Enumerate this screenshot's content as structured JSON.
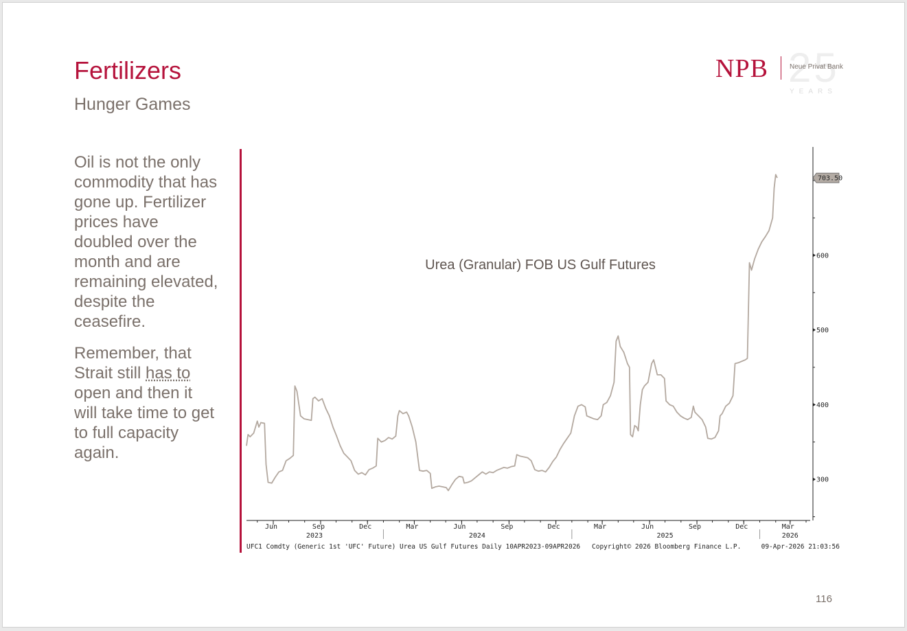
{
  "slide": {
    "title": "Fertilizers",
    "subtitle": "Hunger Games",
    "page_number": "116",
    "logo": {
      "brand": "NPB",
      "bank_name": "Neue Privat Bank",
      "anniversary": "25",
      "years_label": "YEARS"
    },
    "body": {
      "paragraph1": "Oil is not the only commodity that has gone up. Fertilizer prices have doubled over the month and are remaining elevated, despite the ceasefire.",
      "paragraph2_pre": "Remember, that Strait still ",
      "paragraph2_underlined": "has to",
      "paragraph2_post": " open and then it will take time to get to full capacity again."
    },
    "colors": {
      "accent": "#b5123b",
      "text": "#7a706a",
      "series": "#b3a89f"
    }
  },
  "chart_data": {
    "type": "line",
    "title": "Urea (Granular) FOB US Gulf Futures",
    "last_value_label": "703.50",
    "last_value": 703.5,
    "y_ticks": [
      300,
      400,
      500,
      600
    ],
    "ylim": [
      245,
      745
    ],
    "xlim": [
      "2023-04-10",
      "2026-04-09"
    ],
    "x_tick_labels": [
      {
        "date": "2023-06-01",
        "label": "Jun"
      },
      {
        "date": "2023-09-01",
        "label": "Sep"
      },
      {
        "date": "2023-12-01",
        "label": "Dec"
      },
      {
        "date": "2024-03-01",
        "label": "Mar"
      },
      {
        "date": "2024-06-01",
        "label": "Jun"
      },
      {
        "date": "2024-09-01",
        "label": "Sep"
      },
      {
        "date": "2024-12-01",
        "label": "Dec"
      },
      {
        "date": "2025-03-01",
        "label": "Mar"
      },
      {
        "date": "2025-06-01",
        "label": "Jun"
      },
      {
        "date": "2025-09-01",
        "label": "Sep"
      },
      {
        "date": "2025-12-01",
        "label": "Dec"
      },
      {
        "date": "2026-03-01",
        "label": "Mar"
      }
    ],
    "year_labels": [
      {
        "date": "2023-08-20",
        "label": "2023"
      },
      {
        "date": "2024-07-01",
        "label": "2024"
      },
      {
        "date": "2025-07-01",
        "label": "2025"
      },
      {
        "date": "2026-03-01",
        "label": "2026"
      }
    ],
    "year_dividers": [
      "2024-01-01",
      "2025-01-01",
      "2026-01-01"
    ],
    "footer_left": "UFC1 Comdty (Generic 1st 'UFC' Future) Urea US Gulf Futures Daily 10APR2023-09APR2026",
    "footer_center": "Copyright© 2026 Bloomberg Finance L.P.",
    "footer_right": "09-Apr-2026 21:03:56",
    "series": [
      {
        "points": [
          [
            "2023-04-10",
            345
          ],
          [
            "2023-04-13",
            360
          ],
          [
            "2023-04-17",
            357
          ],
          [
            "2023-04-24",
            362
          ],
          [
            "2023-05-01",
            378
          ],
          [
            "2023-05-04",
            370
          ],
          [
            "2023-05-08",
            376
          ],
          [
            "2023-05-15",
            375
          ],
          [
            "2023-05-18",
            320
          ],
          [
            "2023-05-22",
            296
          ],
          [
            "2023-05-29",
            295
          ],
          [
            "2023-06-05",
            303
          ],
          [
            "2023-06-12",
            310
          ],
          [
            "2023-06-19",
            312
          ],
          [
            "2023-06-26",
            325
          ],
          [
            "2023-07-03",
            328
          ],
          [
            "2023-07-10",
            332
          ],
          [
            "2023-07-13",
            425
          ],
          [
            "2023-07-17",
            418
          ],
          [
            "2023-07-24",
            385
          ],
          [
            "2023-07-31",
            381
          ],
          [
            "2023-08-07",
            380
          ],
          [
            "2023-08-14",
            379
          ],
          [
            "2023-08-17",
            408
          ],
          [
            "2023-08-21",
            410
          ],
          [
            "2023-08-28",
            405
          ],
          [
            "2023-09-04",
            408
          ],
          [
            "2023-09-11",
            395
          ],
          [
            "2023-09-18",
            385
          ],
          [
            "2023-09-25",
            370
          ],
          [
            "2023-10-02",
            358
          ],
          [
            "2023-10-09",
            345
          ],
          [
            "2023-10-16",
            335
          ],
          [
            "2023-10-23",
            330
          ],
          [
            "2023-10-30",
            325
          ],
          [
            "2023-11-06",
            312
          ],
          [
            "2023-11-13",
            307
          ],
          [
            "2023-11-20",
            309
          ],
          [
            "2023-11-27",
            306
          ],
          [
            "2023-12-04",
            313
          ],
          [
            "2023-12-11",
            315
          ],
          [
            "2023-12-18",
            318
          ],
          [
            "2023-12-21",
            355
          ],
          [
            "2023-12-28",
            350
          ],
          [
            "2024-01-04",
            352
          ],
          [
            "2024-01-11",
            356
          ],
          [
            "2024-01-18",
            354
          ],
          [
            "2024-01-25",
            358
          ],
          [
            "2024-01-29",
            385
          ],
          [
            "2024-02-01",
            392
          ],
          [
            "2024-02-08",
            388
          ],
          [
            "2024-02-15",
            390
          ],
          [
            "2024-02-19",
            385
          ],
          [
            "2024-02-26",
            370
          ],
          [
            "2024-03-04",
            350
          ],
          [
            "2024-03-11",
            312
          ],
          [
            "2024-03-18",
            311
          ],
          [
            "2024-03-25",
            312
          ],
          [
            "2024-04-01",
            308
          ],
          [
            "2024-04-04",
            288
          ],
          [
            "2024-04-11",
            290
          ],
          [
            "2024-04-18",
            291
          ],
          [
            "2024-04-25",
            290
          ],
          [
            "2024-05-02",
            289
          ],
          [
            "2024-05-06",
            285
          ],
          [
            "2024-05-13",
            293
          ],
          [
            "2024-05-20",
            300
          ],
          [
            "2024-05-27",
            304
          ],
          [
            "2024-06-03",
            303
          ],
          [
            "2024-06-06",
            295
          ],
          [
            "2024-06-13",
            296
          ],
          [
            "2024-06-20",
            298
          ],
          [
            "2024-06-27",
            302
          ],
          [
            "2024-07-04",
            306
          ],
          [
            "2024-07-11",
            310
          ],
          [
            "2024-07-18",
            307
          ],
          [
            "2024-07-25",
            310
          ],
          [
            "2024-08-01",
            309
          ],
          [
            "2024-08-08",
            312
          ],
          [
            "2024-08-15",
            314
          ],
          [
            "2024-08-22",
            316
          ],
          [
            "2024-08-29",
            315
          ],
          [
            "2024-09-05",
            317
          ],
          [
            "2024-09-12",
            318
          ],
          [
            "2024-09-16",
            333
          ],
          [
            "2024-09-23",
            331
          ],
          [
            "2024-09-30",
            330
          ],
          [
            "2024-10-07",
            329
          ],
          [
            "2024-10-14",
            325
          ],
          [
            "2024-10-21",
            313
          ],
          [
            "2024-10-28",
            311
          ],
          [
            "2024-11-04",
            312
          ],
          [
            "2024-11-11",
            310
          ],
          [
            "2024-11-18",
            316
          ],
          [
            "2024-11-25",
            324
          ],
          [
            "2024-12-02",
            330
          ],
          [
            "2024-12-09",
            340
          ],
          [
            "2024-12-16",
            348
          ],
          [
            "2024-12-23",
            355
          ],
          [
            "2024-12-30",
            362
          ],
          [
            "2025-01-06",
            385
          ],
          [
            "2025-01-13",
            398
          ],
          [
            "2025-01-20",
            400
          ],
          [
            "2025-01-27",
            397
          ],
          [
            "2025-01-30",
            385
          ],
          [
            "2025-02-06",
            383
          ],
          [
            "2025-02-13",
            381
          ],
          [
            "2025-02-20",
            380
          ],
          [
            "2025-02-27",
            385
          ],
          [
            "2025-03-03",
            400
          ],
          [
            "2025-03-10",
            403
          ],
          [
            "2025-03-17",
            412
          ],
          [
            "2025-03-24",
            430
          ],
          [
            "2025-03-28",
            485
          ],
          [
            "2025-04-01",
            492
          ],
          [
            "2025-04-05",
            478
          ],
          [
            "2025-04-12",
            470
          ],
          [
            "2025-04-19",
            455
          ],
          [
            "2025-04-23",
            450
          ],
          [
            "2025-04-25",
            360
          ],
          [
            "2025-04-29",
            357
          ],
          [
            "2025-05-03",
            372
          ],
          [
            "2025-05-07",
            370
          ],
          [
            "2025-05-10",
            365
          ],
          [
            "2025-05-14",
            400
          ],
          [
            "2025-05-18",
            420
          ],
          [
            "2025-05-22",
            425
          ],
          [
            "2025-05-29",
            430
          ],
          [
            "2025-06-05",
            455
          ],
          [
            "2025-06-09",
            460
          ],
          [
            "2025-06-16",
            440
          ],
          [
            "2025-06-23",
            440
          ],
          [
            "2025-06-30",
            435
          ],
          [
            "2025-07-03",
            405
          ],
          [
            "2025-07-10",
            400
          ],
          [
            "2025-07-17",
            398
          ],
          [
            "2025-07-24",
            390
          ],
          [
            "2025-07-31",
            385
          ],
          [
            "2025-08-07",
            382
          ],
          [
            "2025-08-14",
            380
          ],
          [
            "2025-08-21",
            383
          ],
          [
            "2025-08-25",
            398
          ],
          [
            "2025-08-28",
            390
          ],
          [
            "2025-09-04",
            385
          ],
          [
            "2025-09-11",
            380
          ],
          [
            "2025-09-18",
            370
          ],
          [
            "2025-09-22",
            355
          ],
          [
            "2025-09-29",
            354
          ],
          [
            "2025-10-06",
            356
          ],
          [
            "2025-10-13",
            365
          ],
          [
            "2025-10-16",
            385
          ],
          [
            "2025-10-20",
            388
          ],
          [
            "2025-10-27",
            398
          ],
          [
            "2025-11-03",
            402
          ],
          [
            "2025-11-10",
            412
          ],
          [
            "2025-11-14",
            455
          ],
          [
            "2025-11-20",
            456
          ],
          [
            "2025-11-27",
            458
          ],
          [
            "2025-12-04",
            460
          ],
          [
            "2025-12-08",
            462
          ],
          [
            "2025-12-12",
            590
          ],
          [
            "2025-12-16",
            580
          ],
          [
            "2025-12-22",
            595
          ],
          [
            "2025-12-29",
            608
          ],
          [
            "2026-01-05",
            618
          ],
          [
            "2026-01-12",
            625
          ],
          [
            "2026-01-19",
            633
          ],
          [
            "2026-01-26",
            650
          ],
          [
            "2026-01-29",
            690
          ],
          [
            "2026-02-01",
            708
          ],
          [
            "2026-02-04",
            703.5
          ]
        ]
      }
    ]
  }
}
